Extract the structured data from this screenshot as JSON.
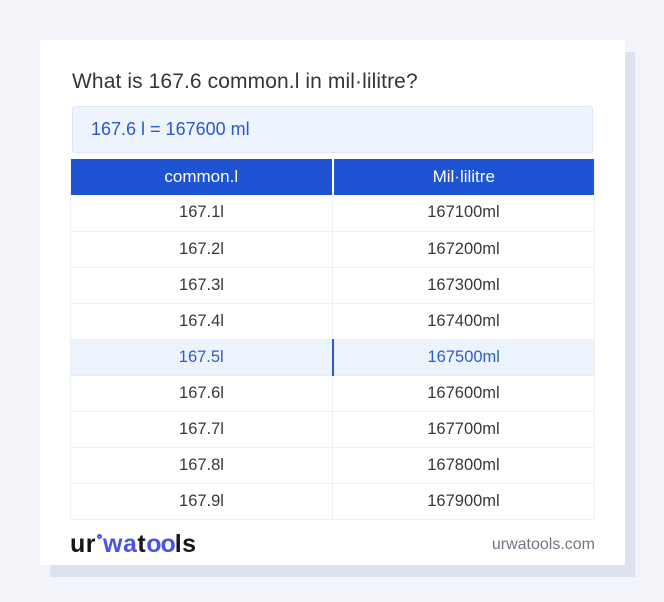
{
  "question": {
    "title": "What is 167.6 common.l in mil·lilitre?",
    "answer": "167.6 l = 167600 ml"
  },
  "table": {
    "headers": [
      "common.l",
      "Mil·lilitre"
    ],
    "rows": [
      {
        "common_l": "167.1l",
        "millilitre": "167100ml",
        "highlight": false
      },
      {
        "common_l": "167.2l",
        "millilitre": "167200ml",
        "highlight": false
      },
      {
        "common_l": "167.3l",
        "millilitre": "167300ml",
        "highlight": false
      },
      {
        "common_l": "167.4l",
        "millilitre": "167400ml",
        "highlight": false
      },
      {
        "common_l": "167.5l",
        "millilitre": "167500ml",
        "highlight": true
      },
      {
        "common_l": "167.6l",
        "millilitre": "167600ml",
        "highlight": false
      },
      {
        "common_l": "167.7l",
        "millilitre": "167700ml",
        "highlight": false
      },
      {
        "common_l": "167.8l",
        "millilitre": "167800ml",
        "highlight": false
      },
      {
        "common_l": "167.9l",
        "millilitre": "167900ml",
        "highlight": false
      }
    ]
  },
  "footer": {
    "logo_segments": [
      {
        "text": "ur",
        "style": "dark"
      },
      {
        "text": "",
        "style": "ring"
      },
      {
        "text": "wa",
        "style": "blue"
      },
      {
        "text": "t",
        "style": "dark"
      },
      {
        "text": "oo",
        "style": "blue-oo"
      },
      {
        "text": "ls",
        "style": "dark"
      }
    ],
    "site": "urwatools.com"
  },
  "colors": {
    "page_bg": "#f2f4f9",
    "card_bg": "#ffffff",
    "card_shadow": "#dce2ee",
    "header_blue": "#1e53d4",
    "answer_bg": "#edf4fd",
    "answer_border": "#dbe7f6",
    "answer_text": "#2b59cb",
    "highlight_bg": "#ecf3fd",
    "highlight_text": "#2c5ec9",
    "highlight_divider": "#2b5bc7",
    "row_border": "#eef0f4",
    "cell_text": "#35383e",
    "title_text": "#32353d",
    "footer_gray": "#707684",
    "logo_dark": "#15161a",
    "logo_blue": "#4a52e8"
  }
}
